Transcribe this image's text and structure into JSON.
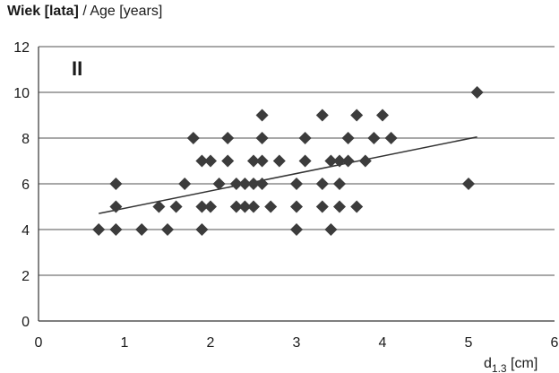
{
  "chart_data": {
    "type": "scatter",
    "ylabel_bold": "Wiek [lata]",
    "ylabel_rest": " / Age [years]",
    "xlabel_main": "d",
    "xlabel_sub": "1.3",
    "xlabel_unit": " [cm]",
    "panel_label": "II",
    "xlim": [
      0,
      6
    ],
    "ylim": [
      0,
      12
    ],
    "x_ticks": [
      0,
      1,
      2,
      3,
      4,
      5,
      6
    ],
    "y_ticks": [
      0,
      2,
      4,
      6,
      8,
      10,
      12
    ],
    "grid": "horizontal",
    "colors": {
      "marker": "#3c3c3c",
      "trendline": "#333333",
      "grid": "#8c8c8c",
      "axis": "#333333"
    },
    "points": [
      {
        "x": 0.7,
        "y": 4
      },
      {
        "x": 0.9,
        "y": 4
      },
      {
        "x": 1.2,
        "y": 4
      },
      {
        "x": 1.5,
        "y": 4
      },
      {
        "x": 1.9,
        "y": 4
      },
      {
        "x": 3.0,
        "y": 4
      },
      {
        "x": 3.4,
        "y": 4
      },
      {
        "x": 0.9,
        "y": 5
      },
      {
        "x": 1.4,
        "y": 5
      },
      {
        "x": 1.6,
        "y": 5
      },
      {
        "x": 1.9,
        "y": 5
      },
      {
        "x": 2.0,
        "y": 5
      },
      {
        "x": 2.3,
        "y": 5
      },
      {
        "x": 2.4,
        "y": 5
      },
      {
        "x": 2.5,
        "y": 5
      },
      {
        "x": 2.7,
        "y": 5
      },
      {
        "x": 3.0,
        "y": 5
      },
      {
        "x": 3.3,
        "y": 5
      },
      {
        "x": 3.5,
        "y": 5
      },
      {
        "x": 3.7,
        "y": 5
      },
      {
        "x": 0.9,
        "y": 6
      },
      {
        "x": 1.7,
        "y": 6
      },
      {
        "x": 2.1,
        "y": 6
      },
      {
        "x": 2.3,
        "y": 6
      },
      {
        "x": 2.4,
        "y": 6
      },
      {
        "x": 2.5,
        "y": 6
      },
      {
        "x": 2.6,
        "y": 6
      },
      {
        "x": 3.0,
        "y": 6
      },
      {
        "x": 3.3,
        "y": 6
      },
      {
        "x": 3.5,
        "y": 6
      },
      {
        "x": 5.0,
        "y": 6
      },
      {
        "x": 1.9,
        "y": 7
      },
      {
        "x": 2.0,
        "y": 7
      },
      {
        "x": 2.2,
        "y": 7
      },
      {
        "x": 2.5,
        "y": 7
      },
      {
        "x": 2.6,
        "y": 7
      },
      {
        "x": 2.8,
        "y": 7
      },
      {
        "x": 3.1,
        "y": 7
      },
      {
        "x": 3.4,
        "y": 7
      },
      {
        "x": 3.5,
        "y": 7
      },
      {
        "x": 3.6,
        "y": 7
      },
      {
        "x": 3.8,
        "y": 7
      },
      {
        "x": 1.8,
        "y": 8
      },
      {
        "x": 2.2,
        "y": 8
      },
      {
        "x": 2.6,
        "y": 8
      },
      {
        "x": 3.1,
        "y": 8
      },
      {
        "x": 3.6,
        "y": 8
      },
      {
        "x": 3.9,
        "y": 8
      },
      {
        "x": 4.1,
        "y": 8
      },
      {
        "x": 2.6,
        "y": 9
      },
      {
        "x": 3.3,
        "y": 9
      },
      {
        "x": 3.7,
        "y": 9
      },
      {
        "x": 4.0,
        "y": 9
      },
      {
        "x": 5.1,
        "y": 10
      }
    ],
    "trendline": {
      "x": [
        0.7,
        5.1
      ],
      "y": [
        4.7,
        8.05
      ]
    }
  }
}
